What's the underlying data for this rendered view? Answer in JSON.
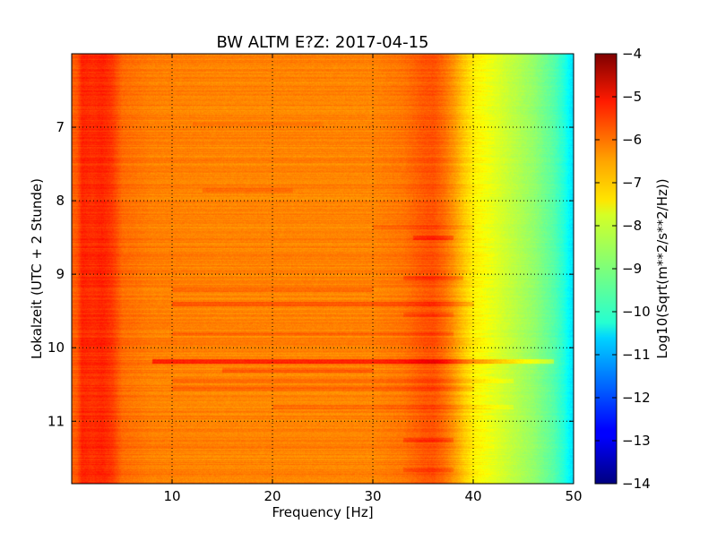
{
  "chart_data": {
    "type": "heatmap",
    "title": "BW ALTM E?Z: 2017-04-15",
    "xlabel": "Frequency [Hz]",
    "ylabel": "Lokalzeit (UTC + 2 Stunde)",
    "xlim": [
      0,
      50
    ],
    "ylim": [
      11.85,
      6.0
    ],
    "x_ticks": [
      10,
      20,
      30,
      40,
      50
    ],
    "x_tick_labels": [
      "10",
      "20",
      "30",
      "40",
      "50"
    ],
    "y_ticks": [
      7,
      8,
      9,
      10,
      11
    ],
    "y_tick_labels": [
      "7",
      "8",
      "9",
      "10",
      "11"
    ],
    "grid": true,
    "colormap": "jet",
    "colorbar": {
      "label": "Log10(Sqrt(m**2/s**2/Hz))",
      "range": [
        -14,
        -4
      ],
      "ticks": [
        -4,
        -5,
        -6,
        -7,
        -8,
        -9,
        -10,
        -11,
        -12,
        -13,
        -14
      ],
      "tick_labels": [
        "−4",
        "−5",
        "−6",
        "−7",
        "−8",
        "−9",
        "−10",
        "−11",
        "−12",
        "−13",
        "−14"
      ]
    },
    "frequency_profile": {
      "x": [
        0,
        0.5,
        1,
        2,
        3,
        4,
        5,
        8,
        15,
        25,
        30,
        33,
        35,
        36,
        37,
        38,
        39,
        40,
        41,
        42,
        44,
        46,
        48,
        49,
        49.5,
        50
      ],
      "values": [
        -6.2,
        -6.1,
        -5.6,
        -5.7,
        -5.6,
        -5.8,
        -6.3,
        -6.5,
        -6.55,
        -6.55,
        -6.55,
        -6.4,
        -6.1,
        -6.05,
        -6.3,
        -6.7,
        -7.2,
        -7.6,
        -7.8,
        -8.0,
        -8.4,
        -8.8,
        -9.4,
        -9.9,
        -10.3,
        -10.6
      ]
    },
    "time_bands": [
      {
        "t": 6.95,
        "delta": 0.15,
        "fmin": 12,
        "fmax": 25
      },
      {
        "t": 7.85,
        "delta": 0.25,
        "fmin": 13,
        "fmax": 22
      },
      {
        "t": 8.35,
        "delta": 0.3,
        "fmin": 30,
        "fmax": 40
      },
      {
        "t": 8.5,
        "delta": 0.5,
        "fmin": 34,
        "fmax": 38
      },
      {
        "t": 9.05,
        "delta": 0.4,
        "fmin": 33,
        "fmax": 39
      },
      {
        "t": 9.2,
        "delta": 0.35,
        "fmin": 10,
        "fmax": 30
      },
      {
        "t": 9.4,
        "delta": 0.45,
        "fmin": 10,
        "fmax": 40
      },
      {
        "t": 9.55,
        "delta": 0.3,
        "fmin": 33,
        "fmax": 38
      },
      {
        "t": 9.8,
        "delta": 0.3,
        "fmin": 10,
        "fmax": 38
      },
      {
        "t": 10.18,
        "delta": 0.9,
        "fmin": 8,
        "fmax": 48
      },
      {
        "t": 10.3,
        "delta": 0.4,
        "fmin": 15,
        "fmax": 30
      },
      {
        "t": 10.45,
        "delta": 0.35,
        "fmin": 10,
        "fmax": 44
      },
      {
        "t": 10.55,
        "delta": 0.3,
        "fmin": 10,
        "fmax": 40
      },
      {
        "t": 10.8,
        "delta": 0.3,
        "fmin": 20,
        "fmax": 44
      },
      {
        "t": 11.25,
        "delta": 0.4,
        "fmin": 33,
        "fmax": 38
      },
      {
        "t": 11.65,
        "delta": 0.3,
        "fmin": 33,
        "fmax": 38
      }
    ]
  }
}
